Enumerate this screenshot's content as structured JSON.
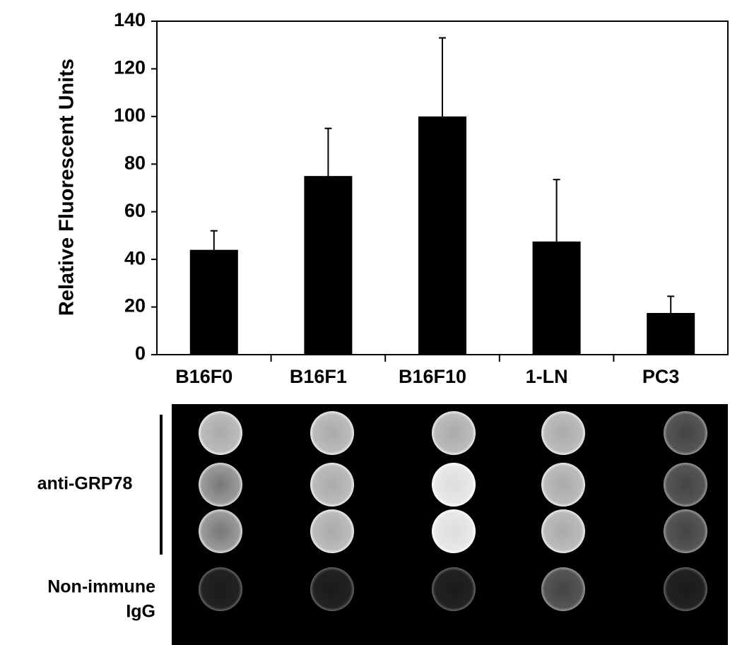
{
  "chart_data": {
    "type": "bar",
    "y_label": "Relative Fluorescent Units",
    "categories": [
      "B16F0",
      "B16F1",
      "B16F10",
      "1-LN",
      "PC3"
    ],
    "values": [
      44,
      75,
      100,
      47.5,
      17.5
    ],
    "errors": [
      8,
      20,
      33,
      26,
      7
    ],
    "color": "#000000",
    "ylim": [
      0,
      140
    ],
    "yticks": [
      0,
      20,
      40,
      60,
      80,
      100,
      120,
      140
    ],
    "grid": false
  },
  "image_panel": {
    "row_labels": [
      "anti-GRP78",
      [
        "Non-immune",
        "IgG"
      ]
    ]
  }
}
